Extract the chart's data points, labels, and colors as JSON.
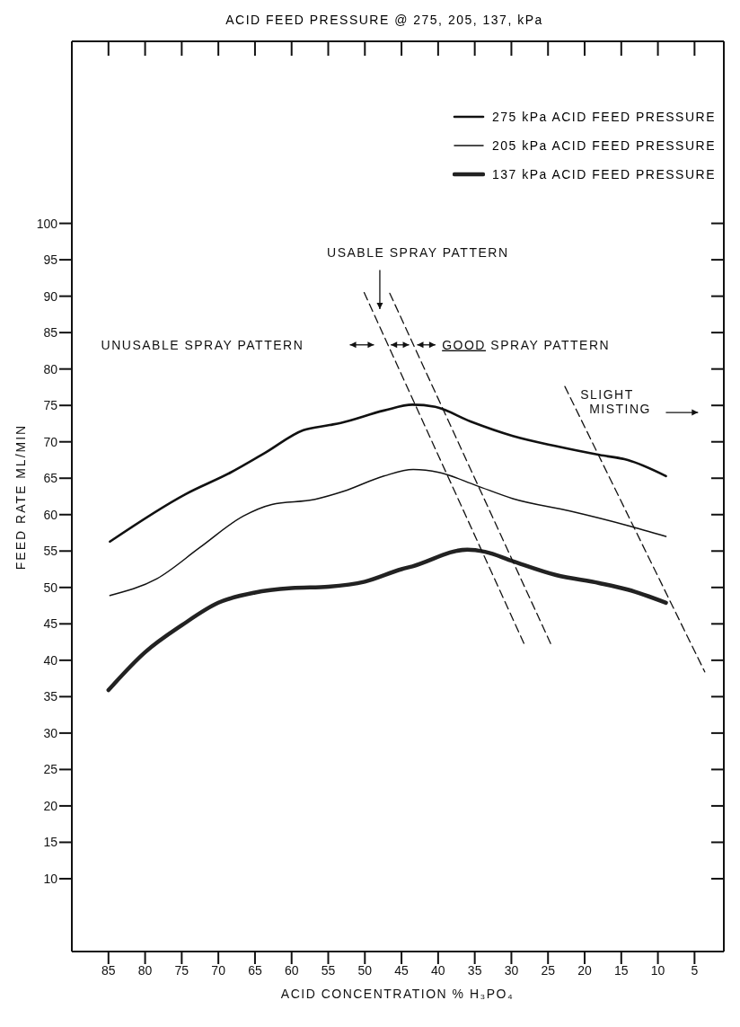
{
  "chart_data": {
    "type": "line",
    "title": "ACID FEED PRESSURE @ 275, 205, 137, kPa",
    "xlabel": "ACID CONCENTRATION % H₃PO₄",
    "ylabel": "FEED RATE ML/MIN",
    "xlim": [
      90,
      1
    ],
    "xticks": [
      85,
      80,
      75,
      70,
      65,
      60,
      55,
      50,
      45,
      40,
      35,
      30,
      25,
      20,
      15,
      10,
      5
    ],
    "ylim": [
      0,
      125
    ],
    "yticks": [
      10,
      15,
      20,
      25,
      30,
      35,
      40,
      45,
      50,
      55,
      60,
      65,
      70,
      75,
      80,
      85,
      90,
      95,
      100
    ],
    "grid": false,
    "legend": "top right",
    "marker": "none",
    "line_style": "solid",
    "annotations": [
      "USABLE SPRAY PATTERN",
      "UNUSABLE SPRAY PATTERN",
      "GOOD SPRAY PATTERN",
      "SLIGHT MISTING"
    ],
    "series": [
      {
        "name": "275 kPa ACID FEED PRESSURE",
        "color": "#111111",
        "x": [
          84.8,
          74.5,
          68.3,
          63.6,
          58.4,
          54.8,
          53.3,
          47.4,
          43.5,
          40.4,
          35.6,
          29.8,
          23.9,
          18,
          14.1,
          8.9
        ],
        "values": [
          56.3,
          62.8,
          65.8,
          68.5,
          71.6,
          72.3,
          72.6,
          74.3,
          75.1,
          74.8,
          72.8,
          70.8,
          69.4,
          68.2,
          67.5,
          65.3
        ]
      },
      {
        "name": "205 kPa ACID FEED PRESSURE",
        "color": "#111111",
        "x": [
          84.8,
          78.4,
          72.5,
          66.6,
          62.7,
          56.8,
          52.9,
          47.4,
          43.4,
          39.9,
          34.8,
          29.8,
          22,
          14.1,
          8.9
        ],
        "values": [
          48.9,
          51.2,
          55.5,
          59.8,
          61.4,
          62.1,
          63.2,
          65.3,
          66.2,
          65.8,
          64,
          62.2,
          60.5,
          58.5,
          57
        ]
      },
      {
        "name": "137 kPa ACID FEED PRESSURE",
        "color": "#222222",
        "x": [
          85,
          80,
          75,
          70,
          65,
          60,
          55,
          50,
          45,
          43.5,
          36,
          33.6,
          29.8,
          23.9,
          18,
          14.1,
          8.9
        ],
        "values": [
          35.9,
          41.1,
          44.8,
          47.9,
          49.3,
          49.9,
          50.1,
          50.8,
          52.5,
          52.9,
          55.2,
          54.9,
          53.6,
          51.7,
          50.6,
          49.7,
          47.9
        ]
      },
      {
        "color": "#111111",
        "line_style": "dashed",
        "x": [
          50.1,
          28.1
        ],
        "values": [
          90.5,
          41.9
        ]
      },
      {
        "color": "#111111",
        "line_style": "dashed",
        "x": [
          46.6,
          24.6
        ],
        "values": [
          90.4,
          42.2
        ]
      },
      {
        "color": "#111111",
        "line_style": "dashed",
        "x": [
          22.7,
          3.6
        ],
        "values": [
          77.6,
          38.4
        ]
      }
    ]
  }
}
